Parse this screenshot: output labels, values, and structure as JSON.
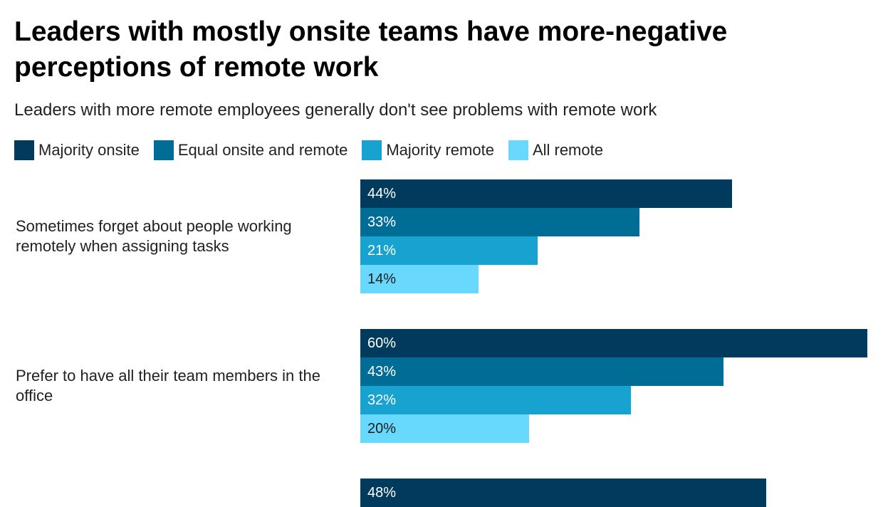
{
  "chart_data": {
    "type": "grouped-bar",
    "title": "Leaders with mostly onsite teams have more-negative perceptions of remote work",
    "subtitle": "Leaders with more remote employees generally don't see problems with remote work",
    "categories": [
      "Sometimes forget about people working remotely when assigning tasks",
      "Prefer to have all their team members in the office",
      null
    ],
    "series": [
      {
        "name": "Majority onsite",
        "color": "#003a5d",
        "values": [
          44,
          60,
          48
        ],
        "value_labels": [
          "44%",
          "60%",
          "48%"
        ]
      },
      {
        "name": "Equal onsite and remote",
        "color": "#006d96",
        "values": [
          33,
          43,
          null
        ],
        "value_labels": [
          "33%",
          "43%",
          null
        ]
      },
      {
        "name": "Majority remote",
        "color": "#18a2cf",
        "values": [
          21,
          32,
          null
        ],
        "value_labels": [
          "21%",
          "32%",
          null
        ]
      },
      {
        "name": "All remote",
        "color": "#68d8fd",
        "values": [
          14,
          20,
          null
        ],
        "value_labels": [
          "14%",
          "20%",
          null
        ]
      }
    ]
  }
}
